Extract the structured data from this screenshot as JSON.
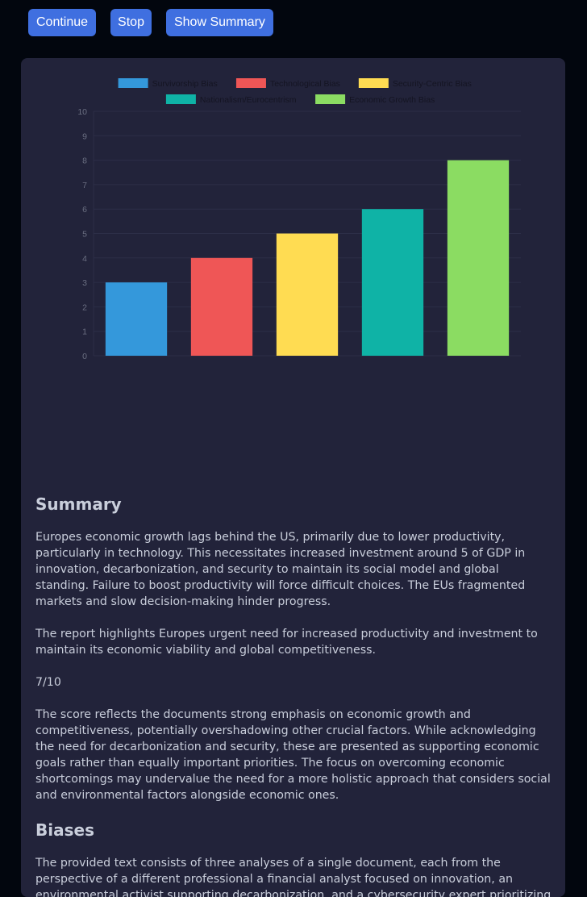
{
  "toolbar": {
    "continue_label": "Continue",
    "stop_label": "Stop",
    "summary_label": "Show Summary"
  },
  "chart_data": {
    "type": "bar",
    "categories": [
      "Survivorship Bias",
      "Technological Bias",
      "Security-Centric Bias",
      "Nationalism/Eurocentrism",
      "Economic Growth Bias"
    ],
    "values": [
      3,
      4,
      5,
      6,
      8
    ],
    "colors": [
      "#3498db",
      "#ef5656",
      "#ffdc52",
      "#0fb3a6",
      "#8bdc62"
    ],
    "ylim": [
      0,
      10
    ],
    "yticks": [
      "0",
      "1",
      "2",
      "3",
      "4",
      "5",
      "6",
      "7",
      "8",
      "9",
      "10"
    ],
    "legend": [
      "Survivorship Bias",
      "Technological Bias",
      "Security-Centric Bias",
      "Nationalism/Eurocentrism",
      "Economic Growth Bias"
    ],
    "legend_position": "top",
    "grid": true,
    "xticks_shown": false,
    "title": "",
    "xlabel": "",
    "ylabel": ""
  },
  "summary": {
    "heading": "Summary",
    "paragraphs": [
      "Europes economic growth lags behind the US, primarily due to lower productivity, particularly in technology. This necessitates increased investment around 5 of GDP in innovation, decarbonization, and security to maintain its social model and global standing. Failure to boost productivity will force difficult choices. The EUs fragmented markets and slow decision-making hinder progress.",
      "The report highlights Europes urgent need for increased productivity and investment to maintain its economic viability and global competitiveness.",
      "7/10",
      "The score reflects the documents strong emphasis on economic growth and competitiveness, potentially overshadowing other crucial factors. While acknowledging the need for decarbonization and security, these are presented as supporting economic goals rather than equally important priorities. The focus on overcoming economic shortcomings may undervalue the need for a more holistic approach that considers social and environmental factors alongside economic ones."
    ]
  },
  "biases": {
    "heading": "Biases",
    "paragraphs": [
      "The provided text consists of three analyses of a single document, each from the perspective of a different professional a financial analyst focused on innovation, an environmental activist supporting decarbonization, and a cybersecurity expert prioritizing data protection. Each analysis"
    ]
  }
}
